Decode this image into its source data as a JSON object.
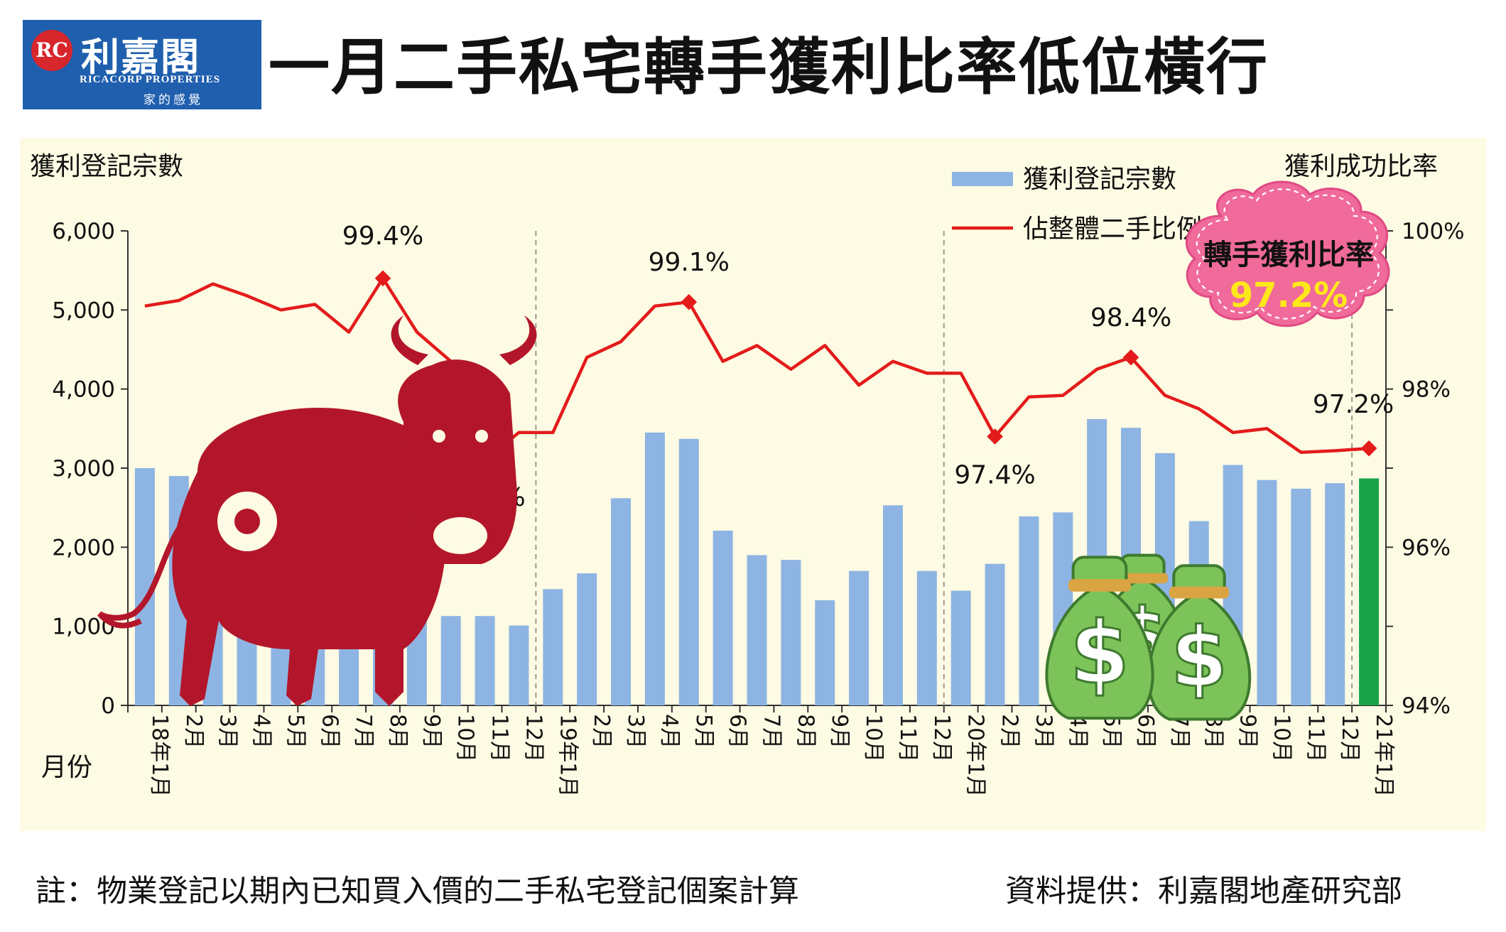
{
  "logo": {
    "mark": "RC",
    "name": "利嘉閣",
    "name_en": "RICACORP PROPERTIES",
    "tagline": "家的感覺"
  },
  "title": "一月二手私宅轉手獲利比率低位橫行",
  "colors": {
    "bar": "#8eb4e3",
    "bar_highlight": "#1aa34a",
    "line": "#e31b1b",
    "panel": "#fdfbe3",
    "callout_fill": "#f06a9a",
    "callout_text": "#ffe81a"
  },
  "chart_data": {
    "type": "bar+line",
    "y_left_label": "獲利登記宗數",
    "y_right_label": "獲利成功比率",
    "x_label": "月份",
    "y_left_ticks": [
      "0",
      "1,000",
      "2,000",
      "3,000",
      "4,000",
      "5,000",
      "6,000"
    ],
    "y_left_range": [
      0,
      6000
    ],
    "y_right_ticks": [
      "94%",
      "96%",
      "98%",
      "100%"
    ],
    "y_right_range": [
      94,
      100
    ],
    "categories": [
      "18年1月",
      "2月",
      "3月",
      "4月",
      "5月",
      "6月",
      "7月",
      "8月",
      "9月",
      "10月",
      "11月",
      "12月",
      "19年1月",
      "2月",
      "3月",
      "4月",
      "5月",
      "6月",
      "7月",
      "8月",
      "9月",
      "10月",
      "11月",
      "12月",
      "20年1月",
      "2月",
      "3月",
      "4月",
      "5月",
      "6月",
      "7月",
      "8月",
      "9月",
      "10月",
      "11月",
      "12月",
      "21年1月"
    ],
    "series": [
      {
        "name": "獲利登記宗數",
        "type": "bar",
        "values": [
          3000,
          2900,
          2700,
          3100,
          2800,
          2200,
          1800,
          1700,
          1390,
          1130,
          1130,
          1010,
          1470,
          1670,
          2620,
          3450,
          3370,
          2210,
          1900,
          1840,
          1330,
          1700,
          2530,
          1700,
          1450,
          1790,
          2390,
          2440,
          3620,
          3510,
          3190,
          2330,
          3040,
          2850,
          2740,
          2810,
          2870
        ]
      },
      {
        "name": "佔整體二手比例",
        "type": "line",
        "values": [
          99.05,
          99.12,
          99.33,
          99.18,
          99.0,
          99.07,
          98.72,
          99.4,
          98.72,
          98.35,
          97.1,
          97.45,
          97.45,
          98.4,
          98.6,
          99.05,
          99.1,
          98.35,
          98.55,
          98.25,
          98.55,
          98.05,
          98.35,
          98.2,
          98.2,
          97.4,
          97.9,
          97.92,
          98.25,
          98.4,
          97.92,
          97.75,
          97.45,
          97.5,
          97.2,
          97.22,
          97.25
        ]
      }
    ],
    "point_labels": [
      {
        "index": 7,
        "text": "99.4%"
      },
      {
        "index": 10,
        "text": "97.1%"
      },
      {
        "index": 16,
        "text": "99.1%"
      },
      {
        "index": 25,
        "text": "97.4%"
      },
      {
        "index": 29,
        "text": "98.4%"
      },
      {
        "index": 36,
        "text": "97.2%"
      }
    ],
    "highlight_index": 36,
    "year_dividers_after": [
      11,
      23,
      35
    ],
    "callout": {
      "title": "轉手獲利比率",
      "value": "97.2%"
    }
  },
  "footnote": "註：物業登記以期內已知買入價的二手私宅登記個案計算",
  "source": "資料提供：利嘉閣地產研究部"
}
